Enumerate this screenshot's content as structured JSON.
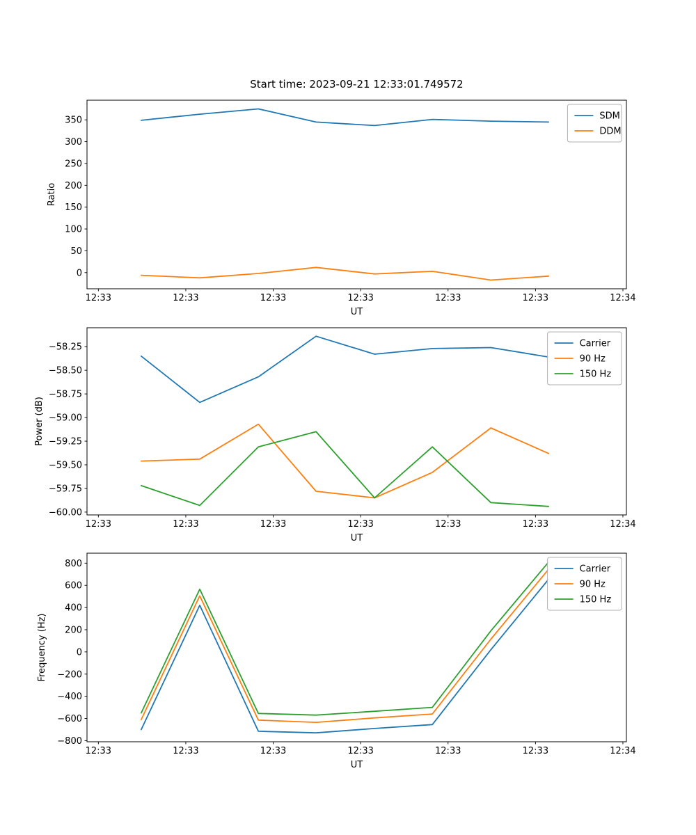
{
  "figure": {
    "title": "Start time: 2023-09-21 12:33:01.749572",
    "colors": {
      "blue": "#1f77b4",
      "orange": "#ff7f0e",
      "green": "#2ca02c"
    }
  },
  "chart_data": [
    {
      "type": "line",
      "name": "ratio",
      "xlabel": "UT",
      "ylabel": "Ratio",
      "xlim": [
        -1.3,
        60.4
      ],
      "ylim": [
        -37,
        395
      ],
      "grid": false,
      "legend_position": "top-right",
      "x_ticks": [
        {
          "v": 0,
          "label": "12:33"
        },
        {
          "v": 10,
          "label": "12:33"
        },
        {
          "v": 20,
          "label": "12:33"
        },
        {
          "v": 30,
          "label": "12:33"
        },
        {
          "v": 40,
          "label": "12:33"
        },
        {
          "v": 50,
          "label": "12:33"
        },
        {
          "v": 60,
          "label": "12:34"
        }
      ],
      "y_ticks": [
        {
          "v": 0,
          "label": "0"
        },
        {
          "v": 50,
          "label": "50"
        },
        {
          "v": 100,
          "label": "100"
        },
        {
          "v": 150,
          "label": "150"
        },
        {
          "v": 200,
          "label": "200"
        },
        {
          "v": 250,
          "label": "250"
        },
        {
          "v": 300,
          "label": "300"
        },
        {
          "v": 350,
          "label": "350"
        }
      ],
      "x": [
        4.9,
        11.6,
        18.3,
        24.9,
        31.6,
        38.2,
        44.9,
        51.5
      ],
      "series": [
        {
          "name": "SDM",
          "color": "#1f77b4",
          "values": [
            349,
            363,
            375,
            345,
            337,
            351,
            347,
            345
          ]
        },
        {
          "name": "DDM",
          "color": "#ff7f0e",
          "values": [
            -6,
            -12,
            -2,
            12,
            -3,
            3,
            -17,
            -8
          ]
        }
      ]
    },
    {
      "type": "line",
      "name": "power",
      "xlabel": "UT",
      "ylabel": "Power (dB)",
      "xlim": [
        -1.3,
        60.4
      ],
      "ylim": [
        -60.03,
        -58.05
      ],
      "grid": false,
      "legend_position": "top-right",
      "x_ticks": [
        {
          "v": 0,
          "label": "12:33"
        },
        {
          "v": 10,
          "label": "12:33"
        },
        {
          "v": 20,
          "label": "12:33"
        },
        {
          "v": 30,
          "label": "12:33"
        },
        {
          "v": 40,
          "label": "12:33"
        },
        {
          "v": 50,
          "label": "12:33"
        },
        {
          "v": 60,
          "label": "12:34"
        }
      ],
      "y_ticks": [
        {
          "v": -60.0,
          "label": "−60.00"
        },
        {
          "v": -59.75,
          "label": "−59.75"
        },
        {
          "v": -59.5,
          "label": "−59.50"
        },
        {
          "v": -59.25,
          "label": "−59.25"
        },
        {
          "v": -59.0,
          "label": "−59.00"
        },
        {
          "v": -58.75,
          "label": "−58.75"
        },
        {
          "v": -58.5,
          "label": "−58.50"
        },
        {
          "v": -58.25,
          "label": "−58.25"
        }
      ],
      "x": [
        4.9,
        11.6,
        18.3,
        24.9,
        31.6,
        38.2,
        44.9,
        51.5
      ],
      "series": [
        {
          "name": "Carrier",
          "color": "#1f77b4",
          "values": [
            -58.35,
            -58.84,
            -58.57,
            -58.14,
            -58.33,
            -58.27,
            -58.26,
            -58.36
          ]
        },
        {
          "name": "90 Hz",
          "color": "#ff7f0e",
          "values": [
            -59.46,
            -59.44,
            -59.07,
            -59.78,
            -59.85,
            -59.58,
            -59.11,
            -59.38
          ]
        },
        {
          "name": "150 Hz",
          "color": "#2ca02c",
          "values": [
            -59.72,
            -59.93,
            -59.31,
            -59.15,
            -59.85,
            -59.31,
            -59.9,
            -59.94
          ]
        }
      ]
    },
    {
      "type": "line",
      "name": "frequency",
      "xlabel": "UT",
      "ylabel": "Frequency (Hz)",
      "xlim": [
        -1.3,
        60.4
      ],
      "ylim": [
        -810,
        890
      ],
      "grid": false,
      "legend_position": "top-right",
      "x_ticks": [
        {
          "v": 0,
          "label": "12:33"
        },
        {
          "v": 10,
          "label": "12:33"
        },
        {
          "v": 20,
          "label": "12:33"
        },
        {
          "v": 30,
          "label": "12:33"
        },
        {
          "v": 40,
          "label": "12:33"
        },
        {
          "v": 50,
          "label": "12:33"
        },
        {
          "v": 60,
          "label": "12:34"
        }
      ],
      "y_ticks": [
        {
          "v": -800,
          "label": "−800"
        },
        {
          "v": -600,
          "label": "−600"
        },
        {
          "v": -400,
          "label": "−400"
        },
        {
          "v": -200,
          "label": "−200"
        },
        {
          "v": 0,
          "label": "0"
        },
        {
          "v": 200,
          "label": "200"
        },
        {
          "v": 400,
          "label": "400"
        },
        {
          "v": 600,
          "label": "600"
        },
        {
          "v": 800,
          "label": "800"
        }
      ],
      "x": [
        4.9,
        11.6,
        18.3,
        24.9,
        31.6,
        38.2,
        44.9,
        51.5
      ],
      "series": [
        {
          "name": "Carrier",
          "color": "#1f77b4",
          "values": [
            -700,
            420,
            -715,
            -730,
            -690,
            -655,
            20,
            655
          ]
        },
        {
          "name": "90 Hz",
          "color": "#ff7f0e",
          "values": [
            -610,
            505,
            -615,
            -635,
            -595,
            -560,
            115,
            745
          ]
        },
        {
          "name": "150 Hz",
          "color": "#2ca02c",
          "values": [
            -550,
            565,
            -555,
            -570,
            -535,
            -500,
            190,
            810
          ]
        }
      ]
    }
  ]
}
